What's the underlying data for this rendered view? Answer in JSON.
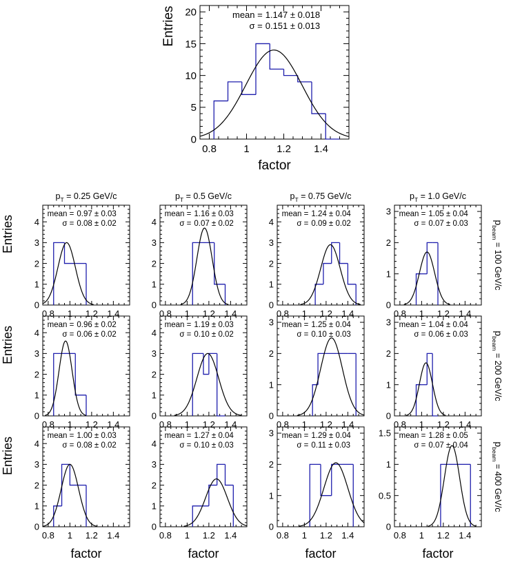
{
  "colors": {
    "histogram": "#1d1dac",
    "fit": "#000000",
    "axis": "#000000"
  },
  "labels": {
    "entries": "Entries",
    "factor": "factor",
    "pt_prefix": "p",
    "pt_sub": "T",
    "beam_prefix": "p",
    "beam_sub": "beam",
    "mean_label": "mean",
    "sigma_label": "σ",
    "pm": "±"
  },
  "columns": [
    {
      "pt_value": "= 0.25 GeV/c"
    },
    {
      "pt_value": "= 0.5 GeV/c"
    },
    {
      "pt_value": "= 0.75 GeV/c"
    },
    {
      "pt_value": "= 1.0 GeV/c"
    }
  ],
  "rows": [
    {
      "beam_value": "= 100 GeV/c"
    },
    {
      "beam_value": "= 200 GeV/c"
    },
    {
      "beam_value": "= 400 GeV/c"
    }
  ],
  "chart_data": [
    {
      "id": "summary",
      "type": "bar",
      "xlabel": "factor",
      "ylabel": "Entries",
      "xlim": [
        0.75,
        1.55
      ],
      "ylim": [
        0,
        21
      ],
      "xticks": [
        0.8,
        1,
        1.2,
        1.4
      ],
      "xtick_labels": [
        "0.8",
        "1",
        "1.2",
        "1.4"
      ],
      "yticks": [
        0,
        5,
        10,
        15,
        20
      ],
      "ytick_labels": [
        "0",
        "5",
        "10",
        "15",
        "20"
      ],
      "bin_edges": [
        0.825,
        0.9,
        0.975,
        1.05,
        1.125,
        1.2,
        1.275,
        1.35,
        1.425,
        1.5
      ],
      "values": [
        6,
        9,
        7,
        15,
        11,
        10,
        9,
        4,
        0
      ],
      "fit": {
        "amplitude": 14,
        "mean": 1.147,
        "sigma": 0.151
      },
      "mean_text": "1.147 ± 0.018",
      "sigma_text": "0.151 ± 0.013"
    },
    {
      "id": "r0c0",
      "type": "bar",
      "xlim": [
        0.75,
        1.55
      ],
      "ylim": [
        0,
        4.8
      ],
      "xticks": [
        0.8,
        1,
        1.2,
        1.4
      ],
      "xtick_labels": [
        "0.8",
        "1",
        "1.2",
        "1.4"
      ],
      "yticks": [
        0,
        1,
        2,
        3,
        4
      ],
      "ytick_labels": [
        "0",
        "1",
        "2",
        "3",
        "4"
      ],
      "bin_edges": [
        0.85,
        0.95,
        1.05,
        1.15
      ],
      "values": [
        3,
        2,
        2
      ],
      "fit": {
        "amplitude": 3.0,
        "mean": 0.97,
        "sigma": 0.08
      },
      "mean_text": "0.97 ± 0.03",
      "sigma_text": "0.08 ± 0.02"
    },
    {
      "id": "r0c1",
      "type": "bar",
      "xlim": [
        0.75,
        1.55
      ],
      "ylim": [
        0,
        4.8
      ],
      "xticks": [
        0.8,
        1,
        1.2,
        1.4
      ],
      "xtick_labels": [
        "0.8",
        "1",
        "1.2",
        "1.4"
      ],
      "yticks": [
        0,
        1,
        2,
        3,
        4
      ],
      "ytick_labels": [
        "0",
        "1",
        "2",
        "3",
        "4"
      ],
      "bin_edges": [
        1.05,
        1.15,
        1.25,
        1.35
      ],
      "values": [
        3,
        3,
        1
      ],
      "fit": {
        "amplitude": 3.7,
        "mean": 1.16,
        "sigma": 0.07
      },
      "mean_text": "1.16 ± 0.03",
      "sigma_text": "0.07 ± 0.02"
    },
    {
      "id": "r0c2",
      "type": "bar",
      "xlim": [
        0.75,
        1.55
      ],
      "ylim": [
        0,
        4.8
      ],
      "xticks": [
        0.8,
        1,
        1.2,
        1.4
      ],
      "xtick_labels": [
        "0.8",
        "1",
        "1.2",
        "1.4"
      ],
      "yticks": [
        0,
        1,
        2,
        3,
        4
      ],
      "ytick_labels": [
        "0",
        "1",
        "2",
        "3",
        "4"
      ],
      "bin_edges": [
        1.1,
        1.175,
        1.25,
        1.325,
        1.4,
        1.475
      ],
      "values": [
        1,
        2,
        3,
        2,
        1
      ],
      "fit": {
        "amplitude": 2.9,
        "mean": 1.24,
        "sigma": 0.09
      },
      "mean_text": "1.24 ± 0.04",
      "sigma_text": "0.09 ± 0.02"
    },
    {
      "id": "r0c3",
      "type": "bar",
      "xlim": [
        0.75,
        1.55
      ],
      "ylim": [
        0,
        3.2
      ],
      "xticks": [
        0.8,
        1,
        1.2,
        1.4
      ],
      "xtick_labels": [
        "0.8",
        "1",
        "1.2",
        "1.4"
      ],
      "yticks": [
        0,
        1,
        2,
        3
      ],
      "ytick_labels": [
        "0",
        "1",
        "2",
        "3"
      ],
      "bin_edges": [
        0.95,
        1.0,
        1.05,
        1.1,
        1.15
      ],
      "values": [
        1,
        1,
        2,
        2
      ],
      "fit": {
        "amplitude": 1.7,
        "mean": 1.05,
        "sigma": 0.07
      },
      "mean_text": "1.05 ± 0.04",
      "sigma_text": "0.07 ± 0.03"
    },
    {
      "id": "r1c0",
      "type": "bar",
      "xlim": [
        0.75,
        1.55
      ],
      "ylim": [
        0,
        4.8
      ],
      "xticks": [
        0.8,
        1,
        1.2,
        1.4
      ],
      "xtick_labels": [
        "0.8",
        "1",
        "1.2",
        "1.4"
      ],
      "yticks": [
        0,
        1,
        2,
        3,
        4
      ],
      "ytick_labels": [
        "0",
        "1",
        "2",
        "3",
        "4"
      ],
      "bin_edges": [
        0.85,
        0.95,
        1.05,
        1.15
      ],
      "values": [
        3,
        3,
        1
      ],
      "fit": {
        "amplitude": 3.6,
        "mean": 0.96,
        "sigma": 0.06
      },
      "mean_text": "0.96 ± 0.02",
      "sigma_text": "0.06 ± 0.02"
    },
    {
      "id": "r1c1",
      "type": "bar",
      "xlim": [
        0.75,
        1.55
      ],
      "ylim": [
        0,
        4.8
      ],
      "xticks": [
        0.8,
        1,
        1.2,
        1.4
      ],
      "xtick_labels": [
        "0.8",
        "1",
        "1.2",
        "1.4"
      ],
      "yticks": [
        0,
        1,
        2,
        3,
        4
      ],
      "ytick_labels": [
        "0",
        "1",
        "2",
        "3",
        "4"
      ],
      "bin_edges": [
        1.05,
        1.15,
        1.2,
        1.275,
        1.35
      ],
      "values": [
        3,
        2,
        3,
        0
      ],
      "fit": {
        "amplitude": 3.0,
        "mean": 1.19,
        "sigma": 0.1
      },
      "mean_text": "1.19 ± 0.03",
      "sigma_text": "0.10 ± 0.02"
    },
    {
      "id": "r1c2",
      "type": "bar",
      "xlim": [
        0.75,
        1.55
      ],
      "ylim": [
        0,
        3.2
      ],
      "xticks": [
        0.8,
        1,
        1.2,
        1.4
      ],
      "xtick_labels": [
        "0.8",
        "1",
        "1.2",
        "1.4"
      ],
      "yticks": [
        0,
        1,
        2,
        3
      ],
      "ytick_labels": [
        "0",
        "1",
        "2",
        "3"
      ],
      "bin_edges": [
        1.075,
        1.125,
        1.2,
        1.3,
        1.4,
        1.475
      ],
      "values": [
        1,
        2,
        2,
        2,
        2
      ],
      "fit": {
        "amplitude": 2.5,
        "mean": 1.25,
        "sigma": 0.1
      },
      "mean_text": "1.25 ± 0.04",
      "sigma_text": "0.10 ± 0.03"
    },
    {
      "id": "r1c3",
      "type": "bar",
      "xlim": [
        0.75,
        1.55
      ],
      "ylim": [
        0,
        3.2
      ],
      "xticks": [
        0.8,
        1,
        1.2,
        1.4
      ],
      "xtick_labels": [
        "0.8",
        "1",
        "1.2",
        "1.4"
      ],
      "yticks": [
        0,
        1,
        2,
        3
      ],
      "ytick_labels": [
        "0",
        "1",
        "2",
        "3"
      ],
      "bin_edges": [
        0.95,
        1.0,
        1.05,
        1.1,
        1.15
      ],
      "values": [
        1,
        1,
        2,
        0
      ],
      "fit": {
        "amplitude": 1.7,
        "mean": 1.04,
        "sigma": 0.06
      },
      "mean_text": "1.04 ± 0.04",
      "sigma_text": "0.06 ± 0.03"
    },
    {
      "id": "r2c0",
      "type": "bar",
      "xlim": [
        0.75,
        1.55
      ],
      "ylim": [
        0,
        4.8
      ],
      "xticks": [
        0.8,
        1,
        1.2,
        1.4
      ],
      "xtick_labels": [
        "0.8",
        "1",
        "1.2",
        "1.4"
      ],
      "yticks": [
        0,
        1,
        2,
        3,
        4
      ],
      "ytick_labels": [
        "0",
        "1",
        "2",
        "3",
        "4"
      ],
      "bin_edges": [
        0.85,
        0.925,
        1.0,
        1.075,
        1.15
      ],
      "values": [
        1,
        3,
        2,
        2
      ],
      "fit": {
        "amplitude": 3.0,
        "mean": 1.0,
        "sigma": 0.08
      },
      "mean_text": "1.00 ± 0.03",
      "sigma_text": "0.08 ± 0.02"
    },
    {
      "id": "r2c1",
      "type": "bar",
      "xlim": [
        0.75,
        1.55
      ],
      "ylim": [
        0,
        4.8
      ],
      "xticks": [
        0.8,
        1,
        1.2,
        1.4
      ],
      "xtick_labels": [
        "0.8",
        "1",
        "1.2",
        "1.4"
      ],
      "yticks": [
        0,
        1,
        2,
        3,
        4
      ],
      "ytick_labels": [
        "0",
        "1",
        "2",
        "3",
        "4"
      ],
      "bin_edges": [
        1.05,
        1.2,
        1.275,
        1.35,
        1.425
      ],
      "values": [
        1,
        2,
        3,
        2
      ],
      "fit": {
        "amplitude": 2.3,
        "mean": 1.27,
        "sigma": 0.1
      },
      "mean_text": "1.27 ± 0.04",
      "sigma_text": "0.10 ± 0.03"
    },
    {
      "id": "r2c2",
      "type": "bar",
      "xlim": [
        0.75,
        1.55
      ],
      "ylim": [
        0,
        3.2
      ],
      "xticks": [
        0.8,
        1,
        1.2,
        1.4
      ],
      "xtick_labels": [
        "0.8",
        "1",
        "1.2",
        "1.4"
      ],
      "yticks": [
        0,
        1,
        2,
        3
      ],
      "ytick_labels": [
        "0",
        "1",
        "2",
        "3"
      ],
      "bin_edges": [
        1.05,
        1.15,
        1.25,
        1.35,
        1.45
      ],
      "values": [
        2,
        1,
        2,
        2
      ],
      "fit": {
        "amplitude": 2.05,
        "mean": 1.29,
        "sigma": 0.11
      },
      "mean_text": "1.29 ± 0.04",
      "sigma_text": "0.11 ± 0.03"
    },
    {
      "id": "r2c3",
      "type": "bar",
      "xlim": [
        0.75,
        1.55
      ],
      "ylim": [
        0,
        1.6
      ],
      "xticks": [
        0.8,
        1,
        1.2,
        1.4
      ],
      "xtick_labels": [
        "0.8",
        "1",
        "1.2",
        "1.4"
      ],
      "yticks": [
        0,
        0.5,
        1,
        1.5
      ],
      "ytick_labels": [
        "0",
        "0.5",
        "1",
        "1.5"
      ],
      "bin_edges": [
        1.175,
        1.25,
        1.35,
        1.45
      ],
      "values": [
        1,
        1,
        1
      ],
      "fit": {
        "amplitude": 1.3,
        "mean": 1.28,
        "sigma": 0.07
      },
      "mean_text": "1.28 ± 0.05",
      "sigma_text": "0.07 ± 0.04"
    }
  ]
}
